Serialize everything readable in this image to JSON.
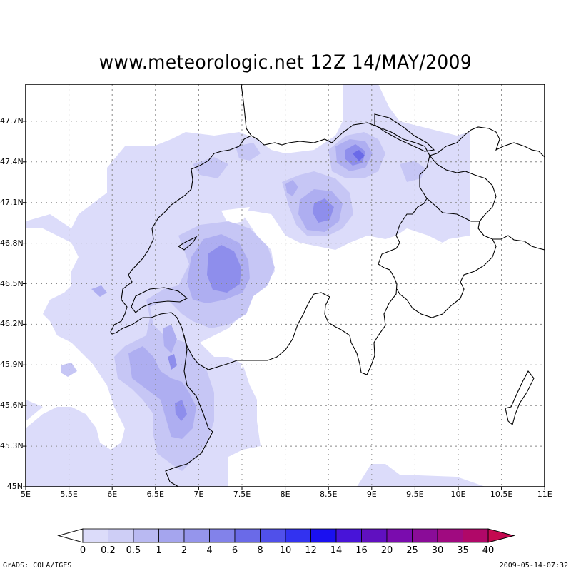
{
  "title": "www.meteorologic.net   12Z 14/MAY/2009",
  "y_ticks": [
    "47.7N",
    "47.4N",
    "47.1N",
    "46.8N",
    "46.5N",
    "46.2N",
    "45.9N",
    "45.6N",
    "45.3N",
    "45N"
  ],
  "x_ticks": [
    "5E",
    "5.5E",
    "6E",
    "6.5E",
    "7E",
    "7.5E",
    "8E",
    "8.5E",
    "9E",
    "9.5E",
    "10E",
    "10.5E",
    "11E"
  ],
  "colorbar": {
    "labels": [
      "0",
      "0.2",
      "0.5",
      "1",
      "2",
      "4",
      "6",
      "8",
      "10",
      "12",
      "14",
      "16",
      "20",
      "25",
      "30",
      "35",
      "40"
    ],
    "colors": [
      "#dcdcfa",
      "#cecef6",
      "#b9b9f2",
      "#a5a5ee",
      "#9595ec",
      "#8282ea",
      "#6a6ae8",
      "#5050ea",
      "#3232f0",
      "#1a10f0",
      "#4814d8",
      "#6010c0",
      "#7a0cae",
      "#8a0c98",
      "#a00a80",
      "#b00868"
    ]
  },
  "credit": "GrADS: COLA/IGES",
  "timestamp": "2009-05-14-07:32"
}
